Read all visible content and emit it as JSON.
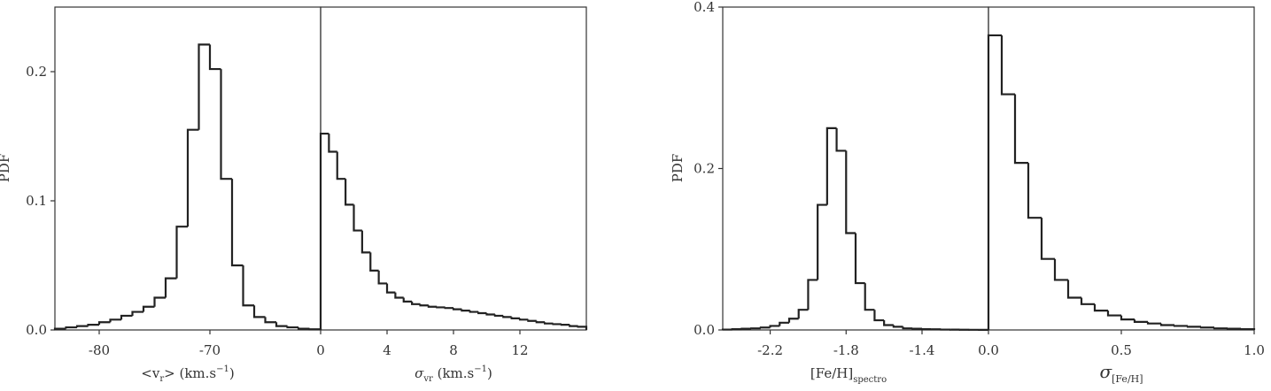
{
  "chart_data": [
    {
      "type": "histogram",
      "color": "#222222",
      "ylabel": "PDF",
      "xlabel": [
        "<v",
        "r",
        "> (km.s",
        "−1",
        ")"
      ],
      "bins": [
        -84,
        -83,
        -82,
        -81,
        -80,
        -79,
        -78,
        -77,
        -76,
        -75,
        -74,
        -73,
        -72,
        -71,
        -70,
        -69,
        -68,
        -67,
        -66,
        -65,
        -64,
        -63,
        -62,
        -61,
        -60
      ],
      "values": [
        0.001,
        0.002,
        0.003,
        0.004,
        0.006,
        0.008,
        0.011,
        0.014,
        0.018,
        0.025,
        0.04,
        0.08,
        0.155,
        0.221,
        0.202,
        0.117,
        0.05,
        0.019,
        0.01,
        0.006,
        0.003,
        0.002,
        0.001,
        0.0005
      ],
      "xlim": [
        -84,
        -60
      ],
      "ylim": [
        0,
        0.25
      ],
      "xticks": [
        -80,
        -70
      ],
      "yticks": [
        {
          "value": 0,
          "label": "0.0"
        },
        0.1,
        0.2
      ]
    },
    {
      "type": "histogram",
      "color": "#222222",
      "xlabel": [
        "σ",
        "vr",
        " (km.s",
        "−1",
        ")"
      ],
      "bins": [
        0,
        0.5,
        1,
        1.5,
        2,
        2.5,
        3,
        3.5,
        4,
        4.5,
        5,
        5.5,
        6,
        6.5,
        7,
        7.5,
        8,
        8.5,
        9,
        9.5,
        10,
        10.5,
        11,
        11.5,
        12,
        12.5,
        13,
        13.5,
        14,
        14.5,
        15,
        15.5,
        16
      ],
      "values": [
        0.152,
        0.138,
        0.117,
        0.097,
        0.077,
        0.06,
        0.046,
        0.036,
        0.029,
        0.025,
        0.022,
        0.02,
        0.019,
        0.018,
        0.0175,
        0.017,
        0.016,
        0.015,
        0.014,
        0.013,
        0.012,
        0.011,
        0.01,
        0.009,
        0.008,
        0.007,
        0.006,
        0.005,
        0.0045,
        0.004,
        0.003,
        0.0025
      ],
      "xlim": [
        0,
        16
      ],
      "ylim": [
        0,
        0.25
      ],
      "xticks": [
        0,
        4,
        8,
        12
      ]
    },
    {
      "type": "histogram",
      "color": "#222222",
      "ylabel": "PDF",
      "xlabel": [
        "[Fe/H]",
        "spectro"
      ],
      "bins": [
        -2.45,
        -2.4,
        -2.35,
        -2.3,
        -2.25,
        -2.2,
        -2.15,
        -2.1,
        -2.05,
        -2.0,
        -1.95,
        -1.9,
        -1.85,
        -1.8,
        -1.75,
        -1.7,
        -1.65,
        -1.6,
        -1.55,
        -1.5,
        -1.45,
        -1.4,
        -1.35,
        -1.3,
        -1.25,
        -1.2,
        -1.15,
        -1.1,
        -1.05
      ],
      "values": [
        0.0005,
        0.001,
        0.0015,
        0.002,
        0.003,
        0.005,
        0.009,
        0.014,
        0.025,
        0.062,
        0.155,
        0.25,
        0.222,
        0.12,
        0.058,
        0.025,
        0.012,
        0.006,
        0.004,
        0.002,
        0.0015,
        0.001,
        0.0008,
        0.0005,
        0.0004,
        0.0003,
        0.0002,
        0.0001
      ],
      "xlim": [
        -2.45,
        -1.05
      ],
      "ylim": [
        0,
        0.4
      ],
      "xticks": [
        -2.2,
        -1.8,
        -1.4
      ],
      "yticks": [
        {
          "value": 0,
          "label": "0.0"
        },
        0.2,
        0.4
      ]
    },
    {
      "type": "histogram",
      "color": "#222222",
      "xlabel": [
        "σ",
        "[Fe/H]"
      ],
      "bins": [
        0,
        0.05,
        0.1,
        0.15,
        0.2,
        0.25,
        0.3,
        0.35,
        0.4,
        0.45,
        0.5,
        0.55,
        0.6,
        0.65,
        0.7,
        0.75,
        0.8,
        0.85,
        0.9,
        0.95,
        1.0
      ],
      "values": [
        0.365,
        0.292,
        0.207,
        0.139,
        0.088,
        0.062,
        0.04,
        0.032,
        0.024,
        0.018,
        0.013,
        0.01,
        0.008,
        0.006,
        0.005,
        0.004,
        0.003,
        0.002,
        0.0015,
        0.001
      ],
      "xlim": [
        0,
        1
      ],
      "ylim": [
        0,
        0.4
      ],
      "xticks": [
        {
          "value": 0,
          "label": "0.0"
        },
        0.5,
        {
          "value": 1,
          "label": "1.0"
        }
      ]
    }
  ]
}
